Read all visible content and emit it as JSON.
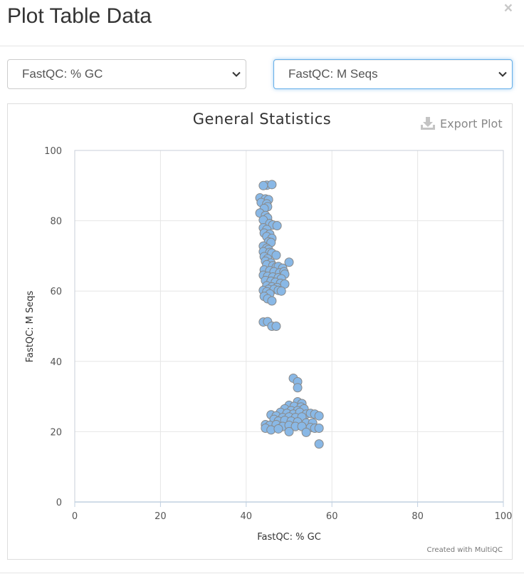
{
  "modal": {
    "title": "Plot Table Data",
    "close_glyph": "×"
  },
  "selectors": {
    "x_selected": "FastQC: % GC",
    "y_selected": "FastQC: M Seqs"
  },
  "export": {
    "label": "Export Plot",
    "icon": "download-icon"
  },
  "credits": "Created with MultiQC",
  "colors": {
    "point_fill": "#89b8e6",
    "point_stroke": "#888888",
    "grid": "#e6e6e6",
    "axis": "#c0d0e0",
    "focus_border": "#66afe9"
  },
  "chart_data": {
    "type": "scatter",
    "title": "General Statistics",
    "xlabel": "FastQC: % GC",
    "ylabel": "FastQC: M Seqs",
    "xlim": [
      0,
      100
    ],
    "ylim": [
      0,
      100
    ],
    "xticks": [
      "0",
      "20",
      "40",
      "60",
      "80",
      "100"
    ],
    "yticks": [
      "0",
      "20",
      "40",
      "60",
      "80",
      "100"
    ],
    "grid": true,
    "legend": "none",
    "points": [
      [
        44.8,
        90.1
      ],
      [
        46,
        90.3
      ],
      [
        44,
        90
      ],
      [
        43.2,
        86.5
      ],
      [
        44.5,
        86.2
      ],
      [
        45.2,
        86
      ],
      [
        43.5,
        85.2
      ],
      [
        44.8,
        84.8
      ],
      [
        45,
        84
      ],
      [
        44.2,
        83.5
      ],
      [
        43.2,
        82.2
      ],
      [
        44.5,
        81.5
      ],
      [
        45,
        80.8
      ],
      [
        44,
        80.2
      ],
      [
        45.5,
        79.2
      ],
      [
        46.2,
        78.8
      ],
      [
        47.2,
        78.6
      ],
      [
        44,
        78
      ],
      [
        44.8,
        77.5
      ],
      [
        44.2,
        76.5
      ],
      [
        45.5,
        76.2
      ],
      [
        44.8,
        75.5
      ],
      [
        46,
        75
      ],
      [
        45.2,
        74
      ],
      [
        45.8,
        73.8
      ],
      [
        44,
        72.8
      ],
      [
        44.8,
        72.2
      ],
      [
        45.2,
        71.8
      ],
      [
        44,
        71.2
      ],
      [
        45.5,
        71
      ],
      [
        46,
        70.8
      ],
      [
        47,
        70.2
      ],
      [
        44.2,
        69.8
      ],
      [
        45,
        69.2
      ],
      [
        44.5,
        68.5
      ],
      [
        45.8,
        68
      ],
      [
        50,
        68.2
      ],
      [
        44.8,
        67.5
      ],
      [
        46.2,
        67.2
      ],
      [
        47,
        66.8
      ],
      [
        47.5,
        67
      ],
      [
        48.5,
        66.5
      ],
      [
        44.2,
        66
      ],
      [
        45.5,
        65.8
      ],
      [
        46.5,
        65.5
      ],
      [
        47.8,
        65.2
      ],
      [
        48.8,
        65.5
      ],
      [
        49,
        64.8
      ],
      [
        44,
        64.5
      ],
      [
        45,
        64.2
      ],
      [
        46.2,
        64
      ],
      [
        47.5,
        63.8
      ],
      [
        48.2,
        63.5
      ],
      [
        44.5,
        63
      ],
      [
        45.8,
        62.8
      ],
      [
        46.8,
        62.5
      ],
      [
        48,
        62.2
      ],
      [
        49,
        62
      ],
      [
        44.8,
        61.5
      ],
      [
        46,
        61.2
      ],
      [
        47.2,
        61
      ],
      [
        45.2,
        60.5
      ],
      [
        46.5,
        60.5
      ],
      [
        47.5,
        60.2
      ],
      [
        48.2,
        60
      ],
      [
        44,
        60.2
      ],
      [
        44.8,
        59.8
      ],
      [
        45.5,
        59.2
      ],
      [
        44.2,
        58.5
      ],
      [
        45,
        57.8
      ],
      [
        46,
        57.2
      ],
      [
        44,
        51.2
      ],
      [
        45,
        51.3
      ],
      [
        46,
        50
      ],
      [
        47,
        50
      ],
      [
        51,
        35.2
      ],
      [
        52,
        34.2
      ],
      [
        52,
        32.5
      ],
      [
        52,
        28.5
      ],
      [
        53,
        28
      ],
      [
        50,
        27.5
      ],
      [
        51.2,
        27.2
      ],
      [
        52.8,
        27
      ],
      [
        49,
        26.5
      ],
      [
        50.5,
        26
      ],
      [
        52,
        26
      ],
      [
        53.5,
        26.5
      ],
      [
        48,
        25.5
      ],
      [
        49.5,
        25.2
      ],
      [
        51,
        25
      ],
      [
        52.5,
        25.5
      ],
      [
        54,
        25
      ],
      [
        55,
        25.2
      ],
      [
        56,
        25
      ],
      [
        57,
        24.5
      ],
      [
        45.8,
        24.8
      ],
      [
        47,
        24.5
      ],
      [
        48.5,
        24
      ],
      [
        50,
        24.2
      ],
      [
        51.5,
        24
      ],
      [
        53,
        24.2
      ],
      [
        46.5,
        23.5
      ],
      [
        47.5,
        23
      ],
      [
        49,
        23.2
      ],
      [
        50.5,
        23
      ],
      [
        52,
        22.8
      ],
      [
        54,
        22.5
      ],
      [
        55.5,
        22.5
      ],
      [
        44.5,
        22
      ],
      [
        45.5,
        21.8
      ],
      [
        47,
        22
      ],
      [
        48.5,
        21.5
      ],
      [
        50,
        21.8
      ],
      [
        51.5,
        21.5
      ],
      [
        53,
        21.5
      ],
      [
        55,
        21.2
      ],
      [
        56,
        21
      ],
      [
        57,
        21
      ],
      [
        44.5,
        21
      ],
      [
        45.8,
        20.5
      ],
      [
        47.5,
        20.8
      ],
      [
        50,
        20
      ],
      [
        54,
        19.8
      ],
      [
        57,
        16.5
      ]
    ]
  }
}
